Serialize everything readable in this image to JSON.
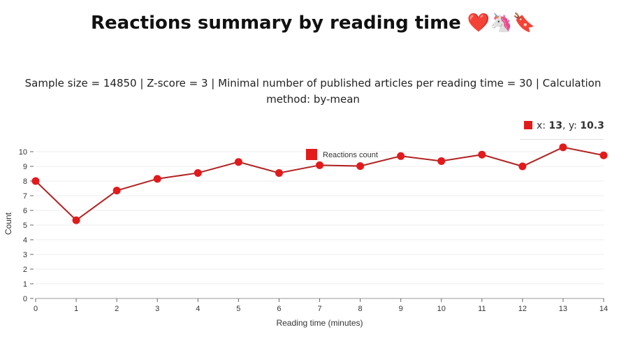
{
  "title": "Reactions summary by reading time ❤️🦄🔖",
  "subtitle": "Sample size = 14850 | Z-score = 3 | Minimal number of published articles per reading time = 30 | Calculation method: by-mean",
  "tooltip": {
    "x_label": "x: ",
    "x": "13",
    "y_label": ", y: ",
    "y": "10.3"
  },
  "chart_data": {
    "type": "line",
    "xlabel": "Reading time (minutes)",
    "ylabel": "Count",
    "x": [
      0,
      1,
      2,
      3,
      4,
      5,
      6,
      7,
      8,
      9,
      10,
      11,
      12,
      13,
      14
    ],
    "series": [
      {
        "name": "Reactions count",
        "color": "#e31a1c",
        "values": [
          8.0,
          5.33,
          7.35,
          8.15,
          8.55,
          9.3,
          8.55,
          9.08,
          9.02,
          9.7,
          9.36,
          9.8,
          9.0,
          10.3,
          9.75
        ]
      }
    ],
    "xlim": [
      0,
      14
    ],
    "ylim": [
      0,
      10
    ],
    "xticks": [
      "0",
      "1",
      "2",
      "3",
      "4",
      "5",
      "6",
      "7",
      "8",
      "9",
      "10",
      "11",
      "12",
      "13",
      "14"
    ],
    "yticks": [
      "0",
      "1",
      "2",
      "3",
      "4",
      "5",
      "6",
      "7",
      "8",
      "9",
      "10"
    ],
    "legend": "top-center",
    "grid": true
  }
}
